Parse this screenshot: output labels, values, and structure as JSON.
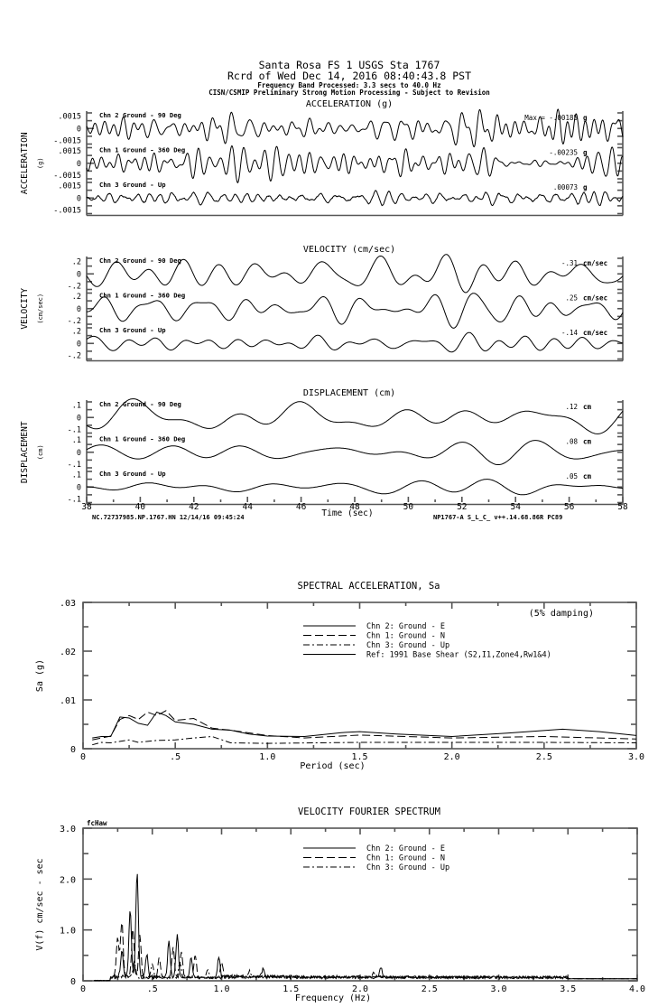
{
  "header": {
    "line1": "Santa Rosa FS 1     USGS Sta 1767",
    "line2": "Rcrd of Wed Dec 14, 2016 08:40:43.8 PST",
    "line3": "Frequency Band Processed: 3.3 secs to 40.0 Hz",
    "line4": "CISN/CSMIP Preliminary Strong Motion Processing - Subject to Revision"
  },
  "time_axis": {
    "label": "Time (sec)",
    "range": [
      38,
      58
    ],
    "ticks": [
      "38",
      "40",
      "42",
      "44",
      "46",
      "48",
      "50",
      "52",
      "54",
      "56",
      "58"
    ],
    "footer_left": "NC.72737985.NP.1767.HN 12/14/16 09:45:24",
    "footer_right": "NP1767-A  S_L_C_  v++.14.68.86R PC89"
  },
  "chart_data": [
    {
      "type": "line",
      "title": "ACCELERATION (g)",
      "ylabel": "ACCELERATION",
      "yunit": "(g)",
      "ylim": [
        -0.0015,
        0.0015
      ],
      "tick_labels": [
        ".0015",
        "0",
        "-.0015"
      ],
      "channels": [
        {
          "label": "Chn 2  Ground - 90 Deg",
          "peak_text": "Max = -.00185",
          "peak": -0.00185,
          "unit": "g"
        },
        {
          "label": "Chn 1  Ground - 360 Deg",
          "peak_text": "-.00235",
          "peak": -0.00235,
          "unit": "g"
        },
        {
          "label": "Chn 3  Ground - Up",
          "peak_text": ".00073",
          "peak": 0.00073,
          "unit": "g"
        }
      ]
    },
    {
      "type": "line",
      "title": "VELOCITY (cm/sec)",
      "ylabel": "VELOCITY",
      "yunit": "(cm/sec)",
      "ylim": [
        -0.2,
        0.2
      ],
      "tick_labels": [
        ".2",
        "0",
        "-.2"
      ],
      "channels": [
        {
          "label": "Chn 2  Ground - 90 Deg",
          "peak_text": "-.31",
          "peak": -0.31,
          "unit": "cm/sec"
        },
        {
          "label": "Chn 1  Ground - 360 Deg",
          "peak_text": ".25",
          "peak": 0.25,
          "unit": "cm/sec"
        },
        {
          "label": "Chn 3  Ground - Up",
          "peak_text": "-.14",
          "peak": -0.14,
          "unit": "cm/sec"
        }
      ]
    },
    {
      "type": "line",
      "title": "DISPLACEMENT (cm)",
      "ylabel": "DISPLACEMENT",
      "yunit": "(cm)",
      "ylim": [
        -0.1,
        0.1
      ],
      "tick_labels": [
        ".1",
        "0",
        "-.1"
      ],
      "channels": [
        {
          "label": "Chn 2  Ground - 90 Deg",
          "peak_text": ".12",
          "peak": 0.12,
          "unit": "cm"
        },
        {
          "label": "Chn 1  Ground - 360 Deg",
          "peak_text": ".08",
          "peak": 0.08,
          "unit": "cm"
        },
        {
          "label": "Chn 3  Ground - Up",
          "peak_text": ".05",
          "peak": 0.05,
          "unit": "cm"
        }
      ]
    },
    {
      "type": "line",
      "title": "SPECTRAL ACCELERATION, Sa",
      "annotation": "(5% damping)",
      "xlabel": "Period (sec)",
      "ylabel": "Sa (g)",
      "xlim": [
        0,
        3.0
      ],
      "ylim": [
        0,
        0.03
      ],
      "xticks": [
        "0",
        ".5",
        "1.0",
        "1.5",
        "2.0",
        "2.5",
        "3.0"
      ],
      "yticks": [
        "0",
        ".01",
        ".02",
        ".03"
      ],
      "legend_placement": "top-right",
      "series": [
        {
          "name": "Chn 2: Ground - E",
          "style": "solid",
          "x": [
            0.05,
            0.1,
            0.15,
            0.2,
            0.25,
            0.3,
            0.35,
            0.4,
            0.45,
            0.5,
            0.6,
            0.7,
            0.8,
            0.9,
            1.0,
            1.2,
            1.4,
            1.5,
            1.7,
            2.0,
            2.3,
            2.6,
            2.8,
            3.0
          ],
          "y": [
            0.0022,
            0.0025,
            0.0025,
            0.0065,
            0.0063,
            0.0052,
            0.0048,
            0.0075,
            0.0068,
            0.0055,
            0.005,
            0.004,
            0.0038,
            0.003,
            0.0026,
            0.0025,
            0.0033,
            0.0035,
            0.003,
            0.0025,
            0.0032,
            0.004,
            0.0035,
            0.0027
          ]
        },
        {
          "name": "Chn 1: Ground - N",
          "style": "dashed",
          "x": [
            0.05,
            0.1,
            0.15,
            0.2,
            0.25,
            0.3,
            0.35,
            0.4,
            0.45,
            0.5,
            0.6,
            0.7,
            0.8,
            1.0,
            1.2,
            1.5,
            2.0,
            2.5,
            3.0
          ],
          "y": [
            0.0018,
            0.0022,
            0.0026,
            0.006,
            0.0068,
            0.006,
            0.0075,
            0.0068,
            0.0078,
            0.0058,
            0.0062,
            0.0042,
            0.0038,
            0.0027,
            0.0022,
            0.0028,
            0.0022,
            0.0025,
            0.002
          ]
        },
        {
          "name": "Chn 3: Ground - Up",
          "style": "dash-dot",
          "x": [
            0.05,
            0.1,
            0.15,
            0.2,
            0.25,
            0.3,
            0.4,
            0.5,
            0.6,
            0.7,
            0.8,
            1.0,
            1.5,
            2.0,
            2.5,
            3.0
          ],
          "y": [
            0.0008,
            0.0013,
            0.0012,
            0.0015,
            0.0018,
            0.0013,
            0.0017,
            0.0018,
            0.0022,
            0.0025,
            0.0012,
            0.0011,
            0.0013,
            0.0013,
            0.0013,
            0.0012
          ]
        },
        {
          "name": "Ref: 1991 Base Shear (S2,I1,Zone4,Rw1&4)",
          "style": "solid-gray",
          "x": [],
          "y": []
        }
      ]
    },
    {
      "type": "line",
      "title": "VELOCITY FOURIER SPECTRUM",
      "corner_label": "fcHaw",
      "xlabel": "Frequency (Hz)",
      "ylabel": "V(f)   cm/sec - sec",
      "xlim": [
        0,
        4.0
      ],
      "ylim": [
        0,
        3.0
      ],
      "xticks": [
        "0",
        ".5",
        "1.0",
        "1.5",
        "2.0",
        "2.5",
        "3.0",
        "3.5",
        "4.0"
      ],
      "yticks": [
        "0",
        "1.0",
        "2.0",
        "3.0"
      ],
      "legend_placement": "top-center",
      "series": [
        {
          "name": "Chn 2: Ground - E",
          "style": "solid",
          "peaks": [
            [
              0.28,
              0.5
            ],
            [
              0.34,
              1.3
            ],
            [
              0.39,
              2.05
            ],
            [
              0.46,
              0.45
            ],
            [
              0.62,
              0.7
            ],
            [
              0.68,
              0.85
            ],
            [
              0.78,
              0.4
            ],
            [
              0.98,
              0.4
            ],
            [
              1.3,
              0.15
            ],
            [
              2.15,
              0.2
            ]
          ]
        },
        {
          "name": "Chn 1: Ground - N",
          "style": "dashed",
          "peaks": [
            [
              0.25,
              0.75
            ],
            [
              0.28,
              1.1
            ],
            [
              0.36,
              0.95
            ],
            [
              0.41,
              0.8
            ],
            [
              0.55,
              0.4
            ],
            [
              0.65,
              0.6
            ],
            [
              0.71,
              0.5
            ],
            [
              0.81,
              0.45
            ],
            [
              1.0,
              0.3
            ]
          ]
        },
        {
          "name": "Chn 3: Ground - Up",
          "style": "dash-dot",
          "peaks": [
            [
              0.37,
              0.3
            ],
            [
              0.5,
              0.25
            ],
            [
              0.7,
              0.3
            ],
            [
              0.9,
              0.15
            ],
            [
              1.2,
              0.1
            ],
            [
              2.1,
              0.1
            ]
          ]
        }
      ]
    }
  ]
}
